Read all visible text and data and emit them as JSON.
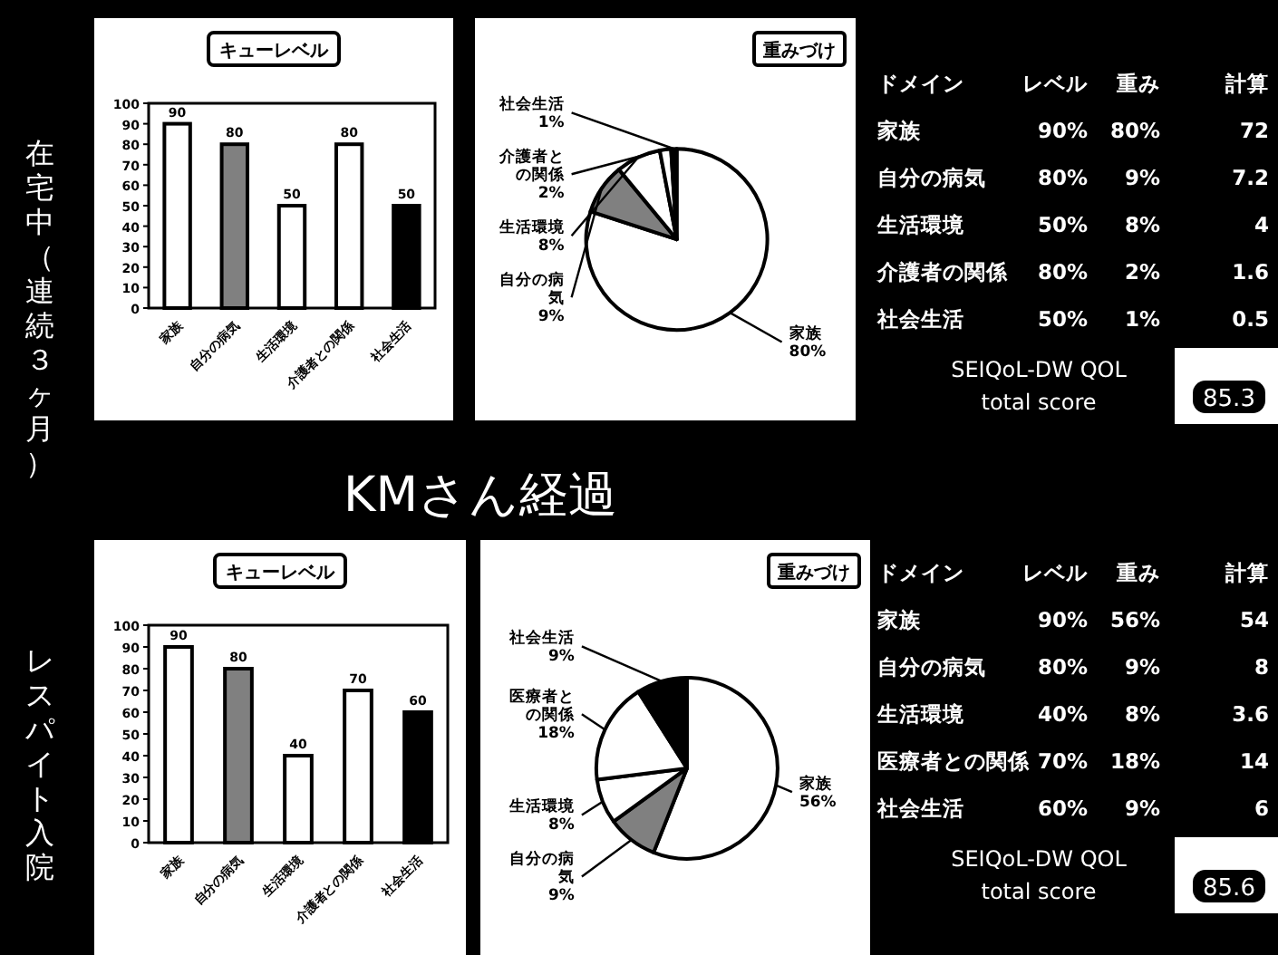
{
  "chart_data": [
    {
      "type": "bar",
      "title": "キューレベル",
      "categories": [
        "家族",
        "自分の病気",
        "生活環境",
        "介護者との関係",
        "社会生活"
      ],
      "values": [
        90,
        80,
        50,
        80,
        50
      ],
      "colors": [
        "#ffffff",
        "#808080",
        "#ffffff",
        "#ffffff",
        "#000000"
      ],
      "ylim": [
        0,
        100
      ],
      "yticks": [
        0,
        10,
        20,
        30,
        40,
        50,
        60,
        70,
        80,
        90,
        100
      ],
      "data_labels": true
    },
    {
      "type": "pie",
      "title": "重みづけ",
      "categories": [
        "家族",
        "自分の病気",
        "生活環境",
        "介護者との関係",
        "社会生活"
      ],
      "values": [
        80,
        9,
        8,
        2,
        1
      ],
      "value_labels": [
        "80%",
        "9%",
        "8%",
        "2%",
        "1%"
      ],
      "colors": [
        "#ffffff",
        "#808080",
        "#ffffff",
        "#ffffff",
        "#000000"
      ]
    },
    {
      "type": "other",
      "ylabel": "ドメイン",
      "categories": [
        "家族",
        "自分の病気",
        "生活環境",
        "介護者の関係",
        "社会生活"
      ],
      "series": [
        {
          "name": "レベル",
          "values": [
            90,
            80,
            50,
            80,
            50
          ],
          "value_labels": [
            "90%",
            "80%",
            "50%",
            "80%",
            "50%"
          ]
        },
        {
          "name": "重み",
          "values": [
            80,
            9,
            8,
            2,
            1
          ],
          "value_labels": [
            "80%",
            "9%",
            "8%",
            "2%",
            "1%"
          ]
        },
        {
          "name": "計算",
          "values": [
            72,
            7.2,
            4,
            1.6,
            0.5
          ],
          "value_labels": [
            "72",
            "7.2",
            "4",
            "1.6",
            "0.5"
          ]
        }
      ],
      "annotations": [
        "SEIQoL-DW QOL",
        "total score",
        "85.3"
      ]
    },
    {
      "type": "other",
      "title": "KMさん経過",
      "annotations": [
        "在宅中（連続３ヶ月）",
        "レスパイト入院"
      ]
    },
    {
      "type": "bar",
      "title": "キューレベル",
      "categories": [
        "家族",
        "自分の病気",
        "生活環境",
        "介護者との関係",
        "社会生活"
      ],
      "values": [
        90,
        80,
        40,
        70,
        60
      ],
      "colors": [
        "#ffffff",
        "#808080",
        "#ffffff",
        "#ffffff",
        "#000000"
      ],
      "ylim": [
        0,
        100
      ],
      "yticks": [
        0,
        10,
        20,
        30,
        40,
        50,
        60,
        70,
        80,
        90,
        100
      ],
      "data_labels": true
    },
    {
      "type": "pie",
      "title": "重みづけ",
      "categories": [
        "家族",
        "自分の病気",
        "生活環境",
        "医療者との関係",
        "社会生活"
      ],
      "values": [
        56,
        9,
        8,
        18,
        9
      ],
      "value_labels": [
        "56%",
        "9%",
        "8%",
        "18%",
        "9%"
      ],
      "colors": [
        "#ffffff",
        "#808080",
        "#ffffff",
        "#ffffff",
        "#000000"
      ]
    },
    {
      "type": "other",
      "ylabel": "ドメイン",
      "categories": [
        "家族",
        "自分の病気",
        "生活環境",
        "医療者との関係",
        "社会生活"
      ],
      "series": [
        {
          "name": "レベル",
          "values": [
            90,
            80,
            40,
            70,
            60
          ],
          "value_labels": [
            "90%",
            "80%",
            "40%",
            "70%",
            "60%"
          ]
        },
        {
          "name": "重み",
          "values": [
            56,
            9,
            8,
            18,
            9
          ],
          "value_labels": [
            "56%",
            "9%",
            "8%",
            "18%",
            "9%"
          ]
        },
        {
          "name": "計算",
          "values": [
            54,
            8,
            3.6,
            14,
            6
          ],
          "value_labels": [
            "54",
            "8",
            "3.6",
            "14",
            "6"
          ]
        }
      ],
      "annotations": [
        "SEIQoL-DW QOL",
        "total score",
        "85.6"
      ]
    }
  ]
}
